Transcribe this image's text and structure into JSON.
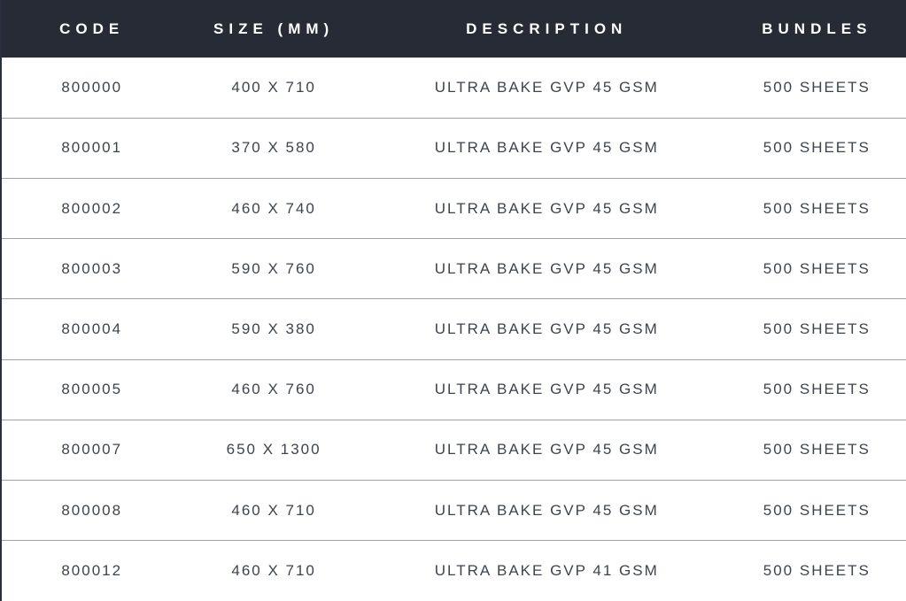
{
  "colors": {
    "header_bg": "#262b35",
    "header_text": "#ffffff",
    "row_bg": "#ffffff",
    "row_text": "#3e444d",
    "row_divider": "#9fa5a6",
    "table_left_border": "#2b3040"
  },
  "table": {
    "columns": [
      {
        "key": "code",
        "label": "CODE"
      },
      {
        "key": "size",
        "label": "SIZE (MM)"
      },
      {
        "key": "description",
        "label": "DESCRIPTION"
      },
      {
        "key": "bundles",
        "label": "BUNDLES"
      }
    ],
    "rows": [
      {
        "code": "800000",
        "size": "400 X 710",
        "description": "ULTRA BAKE GVP 45 GSM",
        "bundles": "500 SHEETS"
      },
      {
        "code": "800001",
        "size": "370 X 580",
        "description": "ULTRA BAKE GVP 45 GSM",
        "bundles": "500 SHEETS"
      },
      {
        "code": "800002",
        "size": "460 X 740",
        "description": "ULTRA BAKE GVP 45 GSM",
        "bundles": "500 SHEETS"
      },
      {
        "code": "800003",
        "size": "590 X 760",
        "description": "ULTRA BAKE GVP 45 GSM",
        "bundles": "500 SHEETS"
      },
      {
        "code": "800004",
        "size": "590 X 380",
        "description": "ULTRA BAKE GVP 45 GSM",
        "bundles": "500 SHEETS"
      },
      {
        "code": "800005",
        "size": "460 X 760",
        "description": "ULTRA BAKE GVP 45 GSM",
        "bundles": "500 SHEETS"
      },
      {
        "code": "800007",
        "size": "650 X 1300",
        "description": "ULTRA BAKE GVP 45 GSM",
        "bundles": "500 SHEETS"
      },
      {
        "code": "800008",
        "size": "460 X 710",
        "description": "ULTRA BAKE GVP 45 GSM",
        "bundles": "500 SHEETS"
      },
      {
        "code": "800012",
        "size": "460 X 710",
        "description": "ULTRA BAKE GVP 41 GSM",
        "bundles": "500 SHEETS"
      }
    ]
  }
}
